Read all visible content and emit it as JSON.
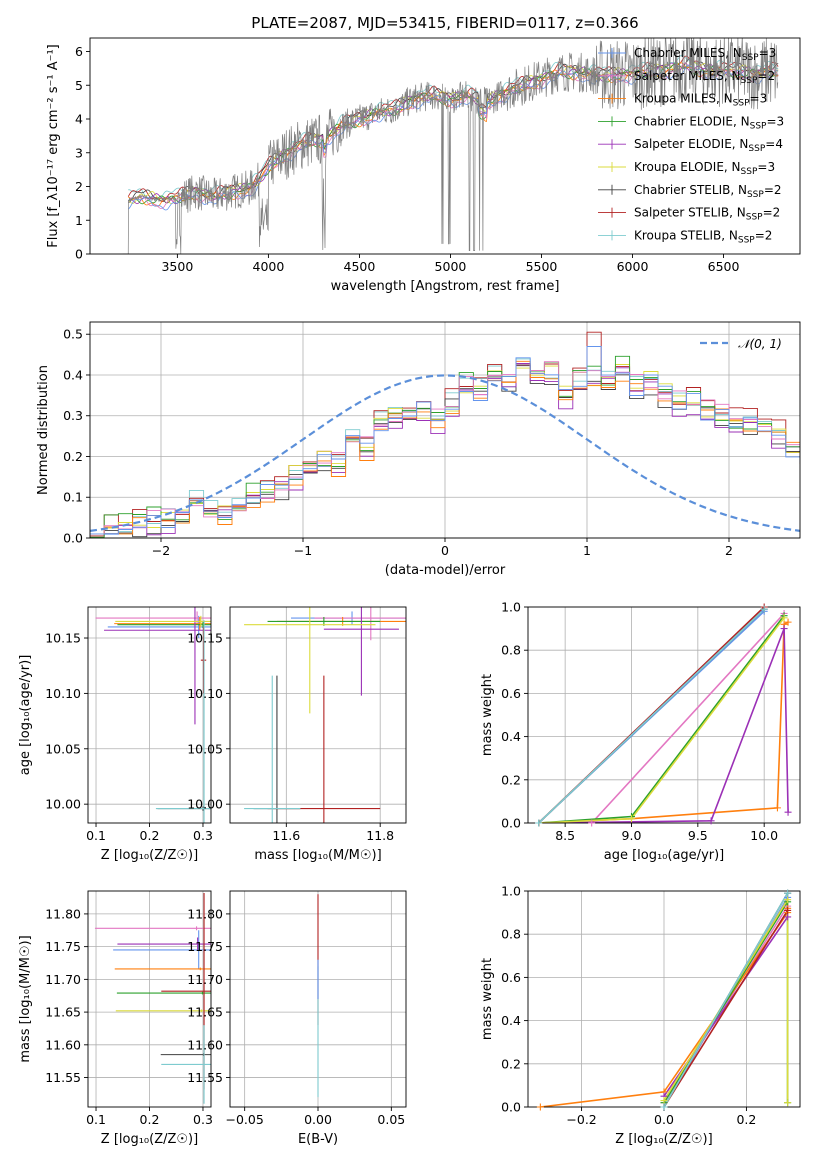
{
  "colors": {
    "chabrier_miles": "#6495ed",
    "salpeter_miles": "#e377c2",
    "kroupa_miles": "#ff7f0e",
    "chabrier_elodie": "#2ca02c",
    "salpeter_elodie": "#9b30b6",
    "kroupa_elodie": "#dbdb3d",
    "chabrier_stelib": "#404040",
    "salpeter_stelib": "#b22222",
    "kroupa_stelib": "#7ecbcf",
    "data": "#808080",
    "normal": "#5b8fd9"
  },
  "chart_data": [
    {
      "type": "line",
      "title": "PLATE=2087, MJD=53415, FIBERID=0117, z=0.366",
      "xlabel": "wavelength [Angstrom, rest frame]",
      "ylabel": "Flux [f_λ10⁻¹⁷ erg cm⁻² s⁻¹ A⁻¹]",
      "xlim": [
        3020,
        6920
      ],
      "ylim": [
        0,
        6.4
      ],
      "xticks": [
        "3500",
        "4000",
        "4500",
        "5000",
        "5500",
        "6000",
        "6500"
      ],
      "yticks": [
        "0",
        "1",
        "2",
        "3",
        "4",
        "5",
        "6"
      ],
      "grid": false,
      "legend_position": "top-right",
      "legend": [
        {
          "label": "Chabrier MILES, N",
          "sub": "SSP",
          "tail": "=3"
        },
        {
          "label": "Salpeter MILES, N",
          "sub": "SSP",
          "tail": "=2"
        },
        {
          "label": "Kroupa MILES, N",
          "sub": "SSP",
          "tail": "=3"
        },
        {
          "label": "Chabrier ELODIE, N",
          "sub": "SSP",
          "tail": "=3"
        },
        {
          "label": "Salpeter ELODIE, N",
          "sub": "SSP",
          "tail": "=4"
        },
        {
          "label": "Kroupa ELODIE, N",
          "sub": "SSP",
          "tail": "=3"
        },
        {
          "label": "Chabrier STELIB, N",
          "sub": "SSP",
          "tail": "=2"
        },
        {
          "label": "Salpeter STELIB, N",
          "sub": "SSP",
          "tail": "=2"
        },
        {
          "label": "Kroupa STELIB, N",
          "sub": "SSP",
          "tail": "=2"
        }
      ],
      "spectrum_anchors": {
        "wavelength": [
          3230,
          3300,
          3400,
          3500,
          3600,
          3700,
          3800,
          3900,
          3950,
          4000,
          4100,
          4200,
          4300,
          4400,
          4500,
          4600,
          4700,
          4800,
          4900,
          5000,
          5100,
          5200,
          5300,
          5400,
          5500,
          5600,
          5700,
          5800,
          5900,
          6000,
          6100,
          6200,
          6300,
          6400,
          6500,
          6600,
          6700,
          6750
        ],
        "flux": [
          1.6,
          1.7,
          1.6,
          1.65,
          1.85,
          1.7,
          1.85,
          1.95,
          2.2,
          2.6,
          3.0,
          3.3,
          3.4,
          3.8,
          4.0,
          4.2,
          4.3,
          4.6,
          4.7,
          4.6,
          4.7,
          4.5,
          4.8,
          5.0,
          5.2,
          5.4,
          5.4,
          5.3,
          5.3,
          5.35,
          5.4,
          5.5,
          5.6,
          5.45,
          5.45,
          5.4,
          5.35,
          5.4
        ]
      }
    },
    {
      "type": "line",
      "xlabel": "(data-model)/error",
      "ylabel": "Normed distribution",
      "xlim": [
        -2.5,
        2.5
      ],
      "ylim": [
        0,
        0.53
      ],
      "xticks": [
        "−2",
        "−1",
        "0",
        "1",
        "2"
      ],
      "yticks": [
        "0.0",
        "0.1",
        "0.2",
        "0.3",
        "0.4",
        "0.5"
      ],
      "grid": true,
      "legend_position": "top-right",
      "legend": [
        {
          "label": "𝒩(0, 1)"
        }
      ],
      "histogram_bin_width": 0.1,
      "histogram_base": [
        0.015,
        0.02,
        0.03,
        0.035,
        0.04,
        0.045,
        0.05,
        0.09,
        0.06,
        0.055,
        0.07,
        0.1,
        0.11,
        0.13,
        0.15,
        0.17,
        0.19,
        0.18,
        0.24,
        0.22,
        0.28,
        0.3,
        0.3,
        0.31,
        0.29,
        0.33,
        0.37,
        0.36,
        0.41,
        0.38,
        0.42,
        0.38,
        0.4,
        0.35,
        0.38,
        0.36,
        0.38,
        0.41,
        0.37,
        0.38,
        0.35,
        0.33,
        0.33,
        0.31,
        0.3,
        0.28,
        0.28,
        0.27,
        0.25,
        0.22,
        0.19,
        0.18,
        0.17,
        0.15,
        0.14,
        0.12,
        0.11,
        0.1,
        0.09,
        0.08,
        0.065,
        0.05,
        0.055,
        0.045,
        0.04,
        0.035,
        0.03,
        0.03,
        0.03,
        0.025
      ],
      "histogram_offsets": [
        0.0,
        0.015,
        -0.01,
        0.02,
        -0.015,
        0.01,
        -0.02,
        0.025,
        0.012
      ]
    },
    {
      "type": "scatter",
      "xlabel": "Z [log₁₀(Z/Z☉)]",
      "ylabel": "age  [log₁₀(age/yr)]",
      "xlim": [
        0.085,
        0.315
      ],
      "ylim": [
        9.983,
        10.178
      ],
      "xticks": [
        "0.1",
        "0.2",
        "0.3"
      ],
      "yticks": [
        "10.00",
        "10.05",
        "10.10",
        "10.15"
      ],
      "grid": true,
      "series": [
        {
          "name": "Chabrier MILES",
          "x": 0.292,
          "y": 10.16,
          "xerr": 0.17,
          "yerr": 0.01
        },
        {
          "name": "Salpeter MILES",
          "x": 0.289,
          "y": 10.168,
          "xerr": 0.19,
          "yerr": 0.006
        },
        {
          "name": "Kroupa MILES",
          "x": 0.294,
          "y": 10.163,
          "xerr": 0.16,
          "yerr": 0.006
        },
        {
          "name": "Chabrier ELODIE",
          "x": 0.3,
          "y": 10.162,
          "xerr": 0.16,
          "yerr": 0.003
        },
        {
          "name": "Salpeter ELODIE",
          "x": 0.285,
          "y": 10.157,
          "xerr": 0.17,
          "yerr": 0.085
        },
        {
          "name": "Kroupa ELODIE",
          "x": 0.296,
          "y": 10.165,
          "xerr": 0.16,
          "yerr": 0.005
        },
        {
          "name": "Chabrier STELIB",
          "x": 0.3,
          "y": 9.996,
          "xerr": 0.085,
          "yerr": 0.002
        },
        {
          "name": "Salpeter STELIB",
          "x": 0.301,
          "y": 10.13,
          "xerr": 0.005,
          "yerr": 0.03
        },
        {
          "name": "Kroupa STELIB",
          "x": 0.302,
          "y": 9.996,
          "xerr": 0.09,
          "yerr": 0.17
        }
      ]
    },
    {
      "type": "scatter",
      "xlabel": "mass [log₁₀(M/M☉)]",
      "ylabel": "",
      "xlim": [
        11.48,
        11.855
      ],
      "ylim": [
        9.983,
        10.178
      ],
      "xticks": [
        "11.6",
        "11.8"
      ],
      "yticks": [
        "10.00",
        "10.05",
        "10.10",
        "10.15"
      ],
      "grid": true,
      "series": [
        {
          "name": "Chabrier MILES",
          "x": 11.74,
          "y": 10.168,
          "xerr": 0.13,
          "yerr": 0.006
        },
        {
          "name": "Salpeter MILES",
          "x": 11.78,
          "y": 10.168,
          "xerr": 0.12,
          "yerr": 0.02
        },
        {
          "name": "Kroupa MILES",
          "x": 11.72,
          "y": 10.165,
          "xerr": 0.14,
          "yerr": 0.004
        },
        {
          "name": "Chabrier ELODIE",
          "x": 11.68,
          "y": 10.165,
          "xerr": 0.12,
          "yerr": 0.004
        },
        {
          "name": "Salpeter ELODIE",
          "x": 11.76,
          "y": 10.158,
          "xerr": 0.08,
          "yerr": 0.06
        },
        {
          "name": "Kroupa ELODIE",
          "x": 11.65,
          "y": 10.162,
          "xerr": 0.14,
          "yerr": 0.08
        },
        {
          "name": "Chabrier STELIB",
          "x": 11.58,
          "y": 9.996,
          "xerr": 0.05,
          "yerr": 0.12
        },
        {
          "name": "Salpeter STELIB",
          "x": 11.68,
          "y": 9.996,
          "xerr": 0.12,
          "yerr": 0.12
        },
        {
          "name": "Kroupa STELIB",
          "x": 11.57,
          "y": 9.996,
          "xerr": 0.06,
          "yerr": 0.12
        }
      ]
    },
    {
      "type": "line",
      "xlabel": "age  [log₁₀(age/yr)]",
      "ylabel": "mass weight",
      "xlim": [
        8.22,
        10.27
      ],
      "ylim": [
        0,
        1.0
      ],
      "xticks": [
        "8.5",
        "9.0",
        "9.5",
        "10.0"
      ],
      "yticks": [
        "0.0",
        "0.2",
        "0.4",
        "0.6",
        "0.8",
        "1.0"
      ],
      "grid": true,
      "series": [
        {
          "name": "Chabrier MILES",
          "x": [
            8.3,
            10.0
          ],
          "y": [
            0.0,
            0.98
          ]
        },
        {
          "name": "Salpeter MILES",
          "x": [
            8.7,
            10.15
          ],
          "y": [
            0.0,
            0.97
          ]
        },
        {
          "name": "Kroupa MILES",
          "x": [
            8.3,
            9.0,
            10.1,
            10.15,
            10.18
          ],
          "y": [
            0.0,
            0.02,
            0.07,
            0.92,
            0.93
          ]
        },
        {
          "name": "Chabrier ELODIE",
          "x": [
            8.3,
            9.0,
            10.15
          ],
          "y": [
            0.0,
            0.03,
            0.96
          ]
        },
        {
          "name": "Salpeter ELODIE",
          "x": [
            8.3,
            9.6,
            10.15,
            10.18
          ],
          "y": [
            0.0,
            0.01,
            0.9,
            0.05
          ]
        },
        {
          "name": "Kroupa ELODIE",
          "x": [
            8.3,
            9.0,
            10.15
          ],
          "y": [
            0.0,
            0.02,
            0.95
          ]
        },
        {
          "name": "Chabrier STELIB",
          "x": [
            8.3,
            10.0
          ],
          "y": [
            0.0,
            0.99
          ]
        },
        {
          "name": "Salpeter STELIB",
          "x": [
            8.3,
            10.0
          ],
          "y": [
            0.0,
            1.0
          ]
        },
        {
          "name": "Kroupa STELIB",
          "x": [
            8.3,
            10.0
          ],
          "y": [
            0.0,
            0.99
          ]
        }
      ]
    },
    {
      "type": "scatter",
      "xlabel": "Z [log₁₀(Z/Z☉)]",
      "ylabel": "mass [log₁₀(M/M☉)]",
      "xlim": [
        0.085,
        0.315
      ],
      "ylim": [
        11.505,
        11.835
      ],
      "xticks": [
        "0.1",
        "0.2",
        "0.3"
      ],
      "yticks": [
        "11.55",
        "11.60",
        "11.65",
        "11.70",
        "11.75",
        "11.80"
      ],
      "grid": true,
      "series": [
        {
          "name": "Chabrier MILES",
          "x": 0.292,
          "y": 11.745,
          "xerr": 0.16,
          "yerr": 0.03
        },
        {
          "name": "Salpeter MILES",
          "x": 0.288,
          "y": 11.778,
          "xerr": 0.19,
          "yerr": 0.003
        },
        {
          "name": "Kroupa MILES",
          "x": 0.295,
          "y": 11.716,
          "xerr": 0.16,
          "yerr": 0.002
        },
        {
          "name": "Chabrier ELODIE",
          "x": 0.299,
          "y": 11.679,
          "xerr": 0.16,
          "yerr": 0.002
        },
        {
          "name": "Salpeter ELODIE",
          "x": 0.29,
          "y": 11.754,
          "xerr": 0.15,
          "yerr": 0.01
        },
        {
          "name": "Kroupa ELODIE",
          "x": 0.297,
          "y": 11.652,
          "xerr": 0.16,
          "yerr": 0.002
        },
        {
          "name": "Chabrier STELIB",
          "x": 0.301,
          "y": 11.585,
          "xerr": 0.08,
          "yerr": 0.002
        },
        {
          "name": "Salpeter STELIB",
          "x": 0.302,
          "y": 11.682,
          "xerr": 0.08,
          "yerr": 0.15
        },
        {
          "name": "Kroupa STELIB",
          "x": 0.302,
          "y": 11.57,
          "xerr": 0.08,
          "yerr": 0.06
        }
      ]
    },
    {
      "type": "scatter",
      "xlabel": "E(B-V)",
      "ylabel": "",
      "xlim": [
        -0.06,
        0.06
      ],
      "ylim": [
        11.505,
        11.835
      ],
      "xticks": [
        "−0.05",
        "0.00",
        "0.05"
      ],
      "yticks": [
        "11.55",
        "11.60",
        "11.65",
        "11.70",
        "11.75",
        "11.80"
      ],
      "grid": true,
      "series": [
        {
          "name": "Salpeter STELIB",
          "x": 0.0,
          "y": 11.73,
          "yerr": 0.1
        },
        {
          "name": "Kroupa STELIB",
          "x": 0.0,
          "y": 11.62,
          "yerr": 0.1
        },
        {
          "name": "Chabrier MILES",
          "x": 0.0,
          "y": 11.7,
          "yerr": 0.03
        }
      ]
    },
    {
      "type": "line",
      "xlabel": "Z [log₁₀(Z/Z☉)]",
      "ylabel": "mass weight",
      "xlim": [
        -0.33,
        0.33
      ],
      "ylim": [
        0,
        1.0
      ],
      "xticks": [
        "−0.2",
        "0.0",
        "0.2"
      ],
      "yticks": [
        "0.0",
        "0.2",
        "0.4",
        "0.6",
        "0.8",
        "1.0"
      ],
      "grid": true,
      "series": [
        {
          "name": "Chabrier MILES",
          "x": [
            0.0,
            0.3
          ],
          "y": [
            0.0,
            0.97
          ]
        },
        {
          "name": "Salpeter MILES",
          "x": [
            0.0,
            0.3
          ],
          "y": [
            0.02,
            0.93
          ]
        },
        {
          "name": "Kroupa MILES",
          "x": [
            -0.3,
            0.0,
            0.3,
            0.3
          ],
          "y": [
            0.0,
            0.07,
            0.9,
            0.92
          ]
        },
        {
          "name": "Chabrier ELODIE",
          "x": [
            0.0,
            0.3,
            0.3
          ],
          "y": [
            0.02,
            0.95,
            0.02
          ]
        },
        {
          "name": "Salpeter ELODIE",
          "x": [
            0.0,
            0.3
          ],
          "y": [
            0.05,
            0.88
          ]
        },
        {
          "name": "Kroupa ELODIE",
          "x": [
            0.0,
            0.3,
            0.3
          ],
          "y": [
            0.03,
            0.96,
            0.02
          ]
        },
        {
          "name": "Chabrier STELIB",
          "x": [
            0.0,
            0.3
          ],
          "y": [
            0.0,
            0.99
          ]
        },
        {
          "name": "Salpeter STELIB",
          "x": [
            0.0,
            0.3
          ],
          "y": [
            0.0,
            0.91
          ]
        },
        {
          "name": "Kroupa STELIB",
          "x": [
            0.0,
            0.3
          ],
          "y": [
            0.0,
            0.99
          ]
        }
      ]
    }
  ]
}
